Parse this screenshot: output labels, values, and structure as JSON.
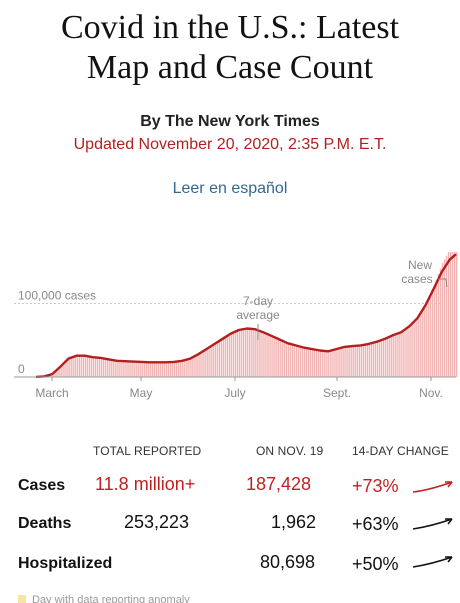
{
  "header": {
    "title_line1": "Covid in the U.S.: Latest",
    "title_line2": "Map and Case Count",
    "byline": "By The New York Times",
    "updated": "Updated November 20, 2020, 2:35 P.M. E.T.",
    "language_link": "Leer en español"
  },
  "chart_data": {
    "type": "area",
    "title": "",
    "xlabel": "",
    "ylabel": "",
    "x_ticks": [
      "March",
      "May",
      "July",
      "Sept.",
      "Nov."
    ],
    "y_ticks": [
      {
        "value": 0,
        "label": "0"
      },
      {
        "value": 100000,
        "label": "100,000 cases"
      }
    ],
    "ylim": [
      0,
      200000
    ],
    "annotations": [
      {
        "label_line1": "7-day",
        "label_line2": "average",
        "at": "late July"
      },
      {
        "label_line1": "New",
        "label_line2": "cases",
        "at": "Nov. 19"
      }
    ],
    "series": [
      {
        "kind": "daily_new_cases_bars",
        "points": [
          [
            0,
            500
          ],
          [
            4,
            1500
          ],
          [
            8,
            6000
          ],
          [
            12,
            17000
          ],
          [
            16,
            28000
          ],
          [
            20,
            31000
          ],
          [
            24,
            30000
          ],
          [
            28,
            28000
          ],
          [
            32,
            27000
          ],
          [
            36,
            25000
          ],
          [
            40,
            23000
          ],
          [
            44,
            23000
          ],
          [
            48,
            21000
          ],
          [
            52,
            21000
          ],
          [
            56,
            20000
          ],
          [
            60,
            21000
          ],
          [
            64,
            20000
          ],
          [
            68,
            20000
          ],
          [
            72,
            22000
          ],
          [
            76,
            26000
          ],
          [
            80,
            32000
          ],
          [
            84,
            40000
          ],
          [
            88,
            47000
          ],
          [
            92,
            55000
          ],
          [
            96,
            61000
          ],
          [
            100,
            66000
          ],
          [
            104,
            67000
          ],
          [
            108,
            65000
          ],
          [
            112,
            61000
          ],
          [
            116,
            56000
          ],
          [
            120,
            52000
          ],
          [
            124,
            47000
          ],
          [
            128,
            44000
          ],
          [
            132,
            41000
          ],
          [
            136,
            39000
          ],
          [
            140,
            37000
          ],
          [
            144,
            36000
          ],
          [
            148,
            40000
          ],
          [
            152,
            42000
          ],
          [
            156,
            43000
          ],
          [
            160,
            44000
          ],
          [
            164,
            46000
          ],
          [
            168,
            49000
          ],
          [
            172,
            53000
          ],
          [
            176,
            58000
          ],
          [
            180,
            62000
          ],
          [
            184,
            70000
          ],
          [
            188,
            80000
          ],
          [
            192,
            100000
          ],
          [
            196,
            125000
          ],
          [
            200,
            155000
          ],
          [
            204,
            175000
          ],
          [
            207,
            187428
          ]
        ]
      },
      {
        "kind": "seven_day_average_line",
        "points": [
          [
            0,
            200
          ],
          [
            4,
            800
          ],
          [
            8,
            4000
          ],
          [
            12,
            14000
          ],
          [
            16,
            25000
          ],
          [
            20,
            29000
          ],
          [
            24,
            29000
          ],
          [
            28,
            27000
          ],
          [
            32,
            26000
          ],
          [
            36,
            24000
          ],
          [
            40,
            22000
          ],
          [
            44,
            21500
          ],
          [
            48,
            21000
          ],
          [
            52,
            20500
          ],
          [
            56,
            20000
          ],
          [
            60,
            20000
          ],
          [
            64,
            20000
          ],
          [
            68,
            20500
          ],
          [
            72,
            22000
          ],
          [
            76,
            25000
          ],
          [
            80,
            31000
          ],
          [
            84,
            38000
          ],
          [
            88,
            45000
          ],
          [
            92,
            52000
          ],
          [
            96,
            59000
          ],
          [
            100,
            64000
          ],
          [
            104,
            66000
          ],
          [
            108,
            65000
          ],
          [
            112,
            61000
          ],
          [
            116,
            56000
          ],
          [
            120,
            51000
          ],
          [
            124,
            46000
          ],
          [
            128,
            43000
          ],
          [
            132,
            40000
          ],
          [
            136,
            38000
          ],
          [
            140,
            36000
          ],
          [
            144,
            35000
          ],
          [
            148,
            38000
          ],
          [
            152,
            41000
          ],
          [
            156,
            42000
          ],
          [
            160,
            43000
          ],
          [
            164,
            45000
          ],
          [
            168,
            48000
          ],
          [
            172,
            52000
          ],
          [
            176,
            57000
          ],
          [
            180,
            61000
          ],
          [
            184,
            69000
          ],
          [
            188,
            80000
          ],
          [
            192,
            98000
          ],
          [
            196,
            120000
          ],
          [
            200,
            143000
          ],
          [
            204,
            160000
          ],
          [
            207,
            167000
          ]
        ]
      }
    ]
  },
  "table": {
    "headers": [
      "TOTAL REPORTED",
      "ON NOV. 19",
      "14-DAY CHANGE"
    ],
    "rows": [
      {
        "label": "Cases",
        "total": "11.8 million+",
        "on_day": "187,428",
        "change": "+73%",
        "trend_color": "#c0211f"
      },
      {
        "label": "Deaths",
        "total": "253,223",
        "on_day": "1,962",
        "change": "+63%",
        "trend_color": "#121212"
      },
      {
        "label": "Hospitalized",
        "total": "",
        "on_day": "80,698",
        "change": "+50%",
        "trend_color": "#121212"
      }
    ]
  },
  "footnote": "Day with data reporting anomaly"
}
